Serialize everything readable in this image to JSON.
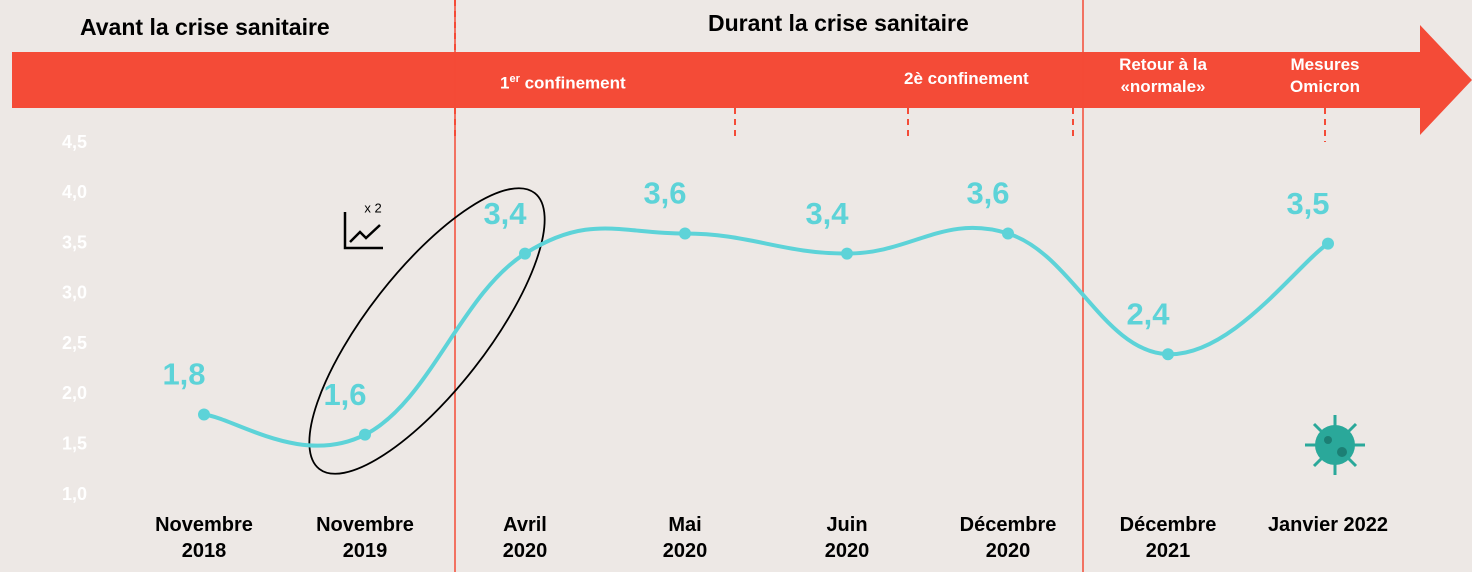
{
  "chart_data": {
    "type": "line",
    "categories": [
      "Novembre\n2018",
      "Novembre\n2019",
      "Avril\n2020",
      "Mai\n2020",
      "Juin\n2020",
      "Décembre\n2020",
      "Décembre\n2021",
      "Janvier 2022"
    ],
    "values": [
      1.8,
      1.6,
      3.4,
      3.6,
      3.4,
      3.6,
      2.4,
      3.5
    ],
    "value_labels": [
      "1,8",
      "1,6",
      "3,4",
      "3,6",
      "3,4",
      "3,6",
      "2,4",
      "3,5"
    ],
    "color": "#5dd3d8",
    "ylim": [
      1.0,
      4.5
    ],
    "yticks": [
      {
        "value": 1.0,
        "label": "1,0"
      },
      {
        "value": 1.5,
        "label": "1,5"
      },
      {
        "value": 2.0,
        "label": "2,0"
      },
      {
        "value": 2.5,
        "label": "2,5"
      },
      {
        "value": 3.0,
        "label": "3,0"
      },
      {
        "value": 3.5,
        "label": "3,5"
      },
      {
        "value": 4.0,
        "label": "4,0"
      },
      {
        "value": 4.5,
        "label": "4,5"
      }
    ],
    "grid": false,
    "annotations": {
      "before": "Avant la crise sanitaire",
      "during": "Durant la crise sanitaire",
      "first_lockdown": {
        "number": "1",
        "sup": "er",
        "text": " confinement"
      },
      "second_lockdown": "2è confinement",
      "back_to_normal": "Retour à la\n«normale»",
      "omicron": "Mesures\nOmicron",
      "factor": "x 2"
    }
  }
}
